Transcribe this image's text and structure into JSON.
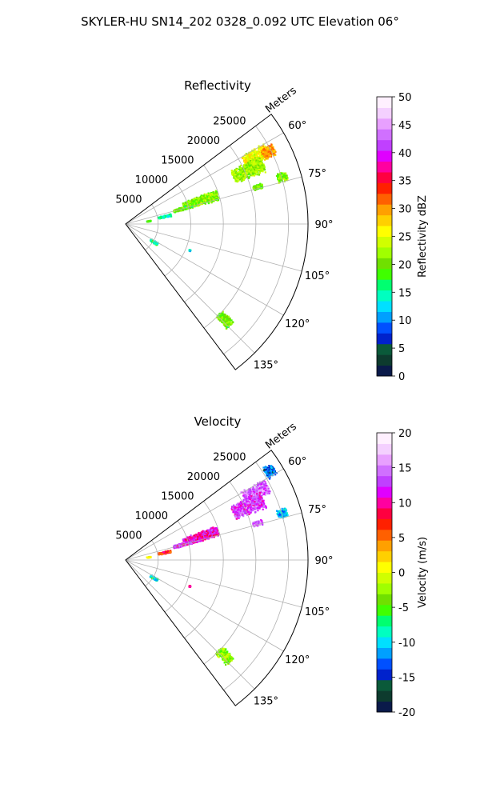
{
  "figure": {
    "suptitle": "SKYLER-HU  SN14_202  0328_0.092 UTC Elevation 06°"
  },
  "chart_data": [
    {
      "type": "polar-sector-scan",
      "title": "Reflectivity",
      "range_label": "Meters",
      "range_ticks": [
        5000,
        10000,
        15000,
        20000,
        25000
      ],
      "range_max": 28000,
      "azimuth_ticks": [
        "60°",
        "75°",
        "90°",
        "105°",
        "120°",
        "135°"
      ],
      "azimuth_range_deg": [
        53,
        143
      ],
      "colorbar": {
        "label": "Reflectivity dBZ",
        "min": 0,
        "max": 50,
        "ticks": [
          0,
          5,
          10,
          15,
          20,
          25,
          30,
          35,
          40,
          45,
          50
        ],
        "colors": [
          "#0a1a4a",
          "#0d3b2e",
          "#0a5a3a",
          "#0022cc",
          "#0050ff",
          "#00a0ff",
          "#00e0ff",
          "#00ffc0",
          "#00ff70",
          "#40ff00",
          "#70e000",
          "#a0ff00",
          "#d0ff00",
          "#ffff00",
          "#ffd000",
          "#ffa000",
          "#ff6000",
          "#ff2000",
          "#ff0040",
          "#ff00a0",
          "#e000ff",
          "#c040ff",
          "#d070ff",
          "#e8a0ff",
          "#f4d0ff",
          "#fff0ff"
        ]
      },
      "echoes": [
        {
          "az": 62,
          "r": 22500,
          "dr": 4000,
          "daz": 5,
          "value": 26
        },
        {
          "az": 66,
          "r": 20500,
          "dr": 5000,
          "daz": 6,
          "value": 22
        },
        {
          "az": 63,
          "r": 24500,
          "dr": 2000,
          "daz": 4,
          "value": 30
        },
        {
          "az": 73,
          "r": 25000,
          "dr": 1500,
          "daz": 3,
          "value": 21
        },
        {
          "az": 74,
          "r": 21000,
          "dr": 1500,
          "daz": 2,
          "value": 20
        },
        {
          "az": 72,
          "r": 12000,
          "dr": 5500,
          "daz": 6,
          "value": 21
        },
        {
          "az": 74,
          "r": 9000,
          "dr": 3000,
          "daz": 3,
          "value": 20
        },
        {
          "az": 78,
          "r": 6000,
          "dr": 2000,
          "daz": 3,
          "value": 15
        },
        {
          "az": 81,
          "r": 3500,
          "dr": 600,
          "daz": 2,
          "value": 18
        },
        {
          "az": 122,
          "r": 5000,
          "dr": 1200,
          "daz": 4,
          "value": 15
        },
        {
          "az": 112,
          "r": 10500,
          "dr": 200,
          "daz": 1,
          "value": 14
        },
        {
          "az": 134,
          "r": 21000,
          "dr": 2500,
          "daz": 4,
          "value": 20
        }
      ]
    },
    {
      "type": "polar-sector-scan",
      "title": "Velocity",
      "range_label": "Meters",
      "range_ticks": [
        5000,
        10000,
        15000,
        20000,
        25000
      ],
      "range_max": 28000,
      "azimuth_ticks": [
        "60°",
        "75°",
        "90°",
        "105°",
        "120°",
        "135°"
      ],
      "azimuth_range_deg": [
        53,
        143
      ],
      "colorbar": {
        "label": "Velocity (m/s)",
        "min": -20,
        "max": 20,
        "ticks": [
          -20,
          -15,
          -10,
          -5,
          0,
          5,
          10,
          15,
          20
        ],
        "colors": [
          "#0a1a4a",
          "#0d3b2e",
          "#0a5a3a",
          "#0022cc",
          "#0050ff",
          "#00a0ff",
          "#00e0ff",
          "#00ffc0",
          "#00ff70",
          "#40ff00",
          "#70e000",
          "#a0ff00",
          "#d0ff00",
          "#ffff00",
          "#ffd000",
          "#ffa000",
          "#ff6000",
          "#ff2000",
          "#ff0040",
          "#ff00a0",
          "#e000ff",
          "#c040ff",
          "#d070ff",
          "#e8a0ff",
          "#f4d0ff",
          "#fff0ff"
        ]
      },
      "echoes": [
        {
          "az": 62,
          "r": 22500,
          "dr": 4000,
          "daz": 5,
          "value": 14
        },
        {
          "az": 66,
          "r": 20500,
          "dr": 5000,
          "daz": 6,
          "value": 13
        },
        {
          "az": 58,
          "r": 26000,
          "dr": 1500,
          "daz": 4,
          "value": -13
        },
        {
          "az": 73,
          "r": 25000,
          "dr": 1500,
          "daz": 3,
          "value": -11
        },
        {
          "az": 74,
          "r": 21000,
          "dr": 1500,
          "daz": 2,
          "value": 14
        },
        {
          "az": 72,
          "r": 12000,
          "dr": 5500,
          "daz": 6,
          "value": 11
        },
        {
          "az": 74,
          "r": 9000,
          "dr": 3000,
          "daz": 3,
          "value": 12
        },
        {
          "az": 78,
          "r": 6000,
          "dr": 2000,
          "daz": 3,
          "value": 7
        },
        {
          "az": 81,
          "r": 3500,
          "dr": 600,
          "daz": 2,
          "value": 1
        },
        {
          "az": 122,
          "r": 5000,
          "dr": 1200,
          "daz": 4,
          "value": -9
        },
        {
          "az": 112,
          "r": 10500,
          "dr": 200,
          "daz": 1,
          "value": 9
        },
        {
          "az": 134,
          "r": 21000,
          "dr": 2500,
          "daz": 4,
          "value": -3
        }
      ]
    }
  ]
}
